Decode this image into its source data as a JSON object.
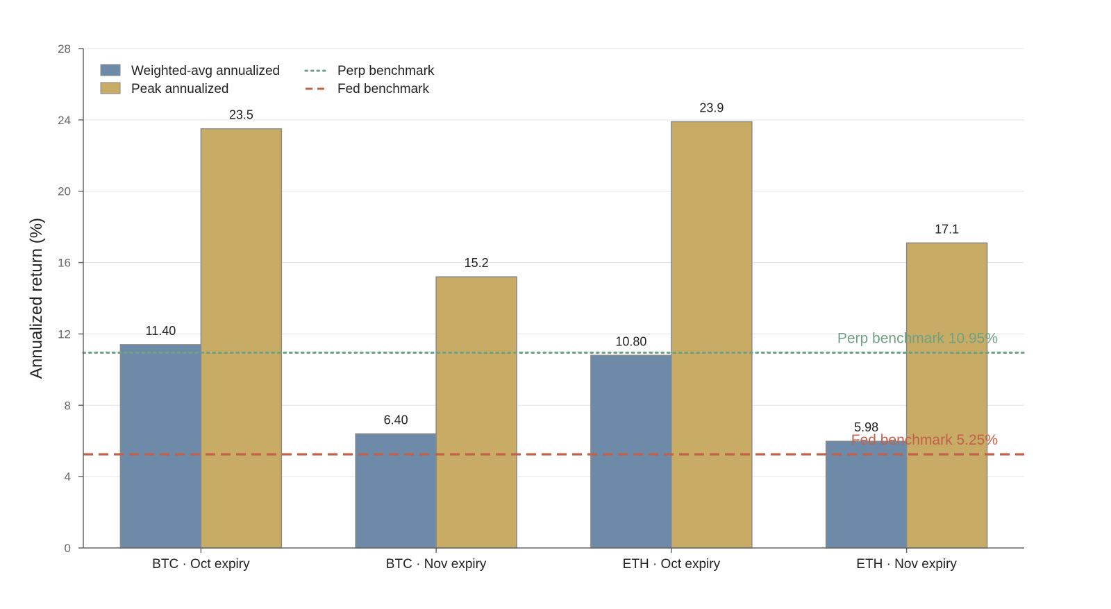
{
  "chart_data": {
    "type": "bar",
    "title": "",
    "xlabel": "",
    "ylabel": "Annualized return (%)",
    "ylim": [
      0,
      28
    ],
    "yticks": [
      0,
      4,
      8,
      12,
      16,
      20,
      24,
      28
    ],
    "grid": "horizontal",
    "legend_position": "top-left",
    "categories": [
      "BTC · Oct expiry",
      "BTC · Nov expiry",
      "ETH · Oct expiry",
      "ETH · Nov expiry"
    ],
    "series": [
      {
        "name": "Weighted-avg annualized",
        "color": "#6d8ba8",
        "values": [
          11.4,
          6.4,
          10.8,
          5.98
        ],
        "labels": [
          "11.40",
          "6.40",
          "10.80",
          "5.98"
        ]
      },
      {
        "name": "Peak annualized",
        "color": "#c8ab64",
        "values": [
          23.5,
          15.2,
          23.9,
          17.1
        ],
        "labels": [
          "23.5",
          "15.2",
          "23.9",
          "17.1"
        ]
      }
    ],
    "reference_lines": [
      {
        "name": "Perp benchmark",
        "value": 10.95,
        "style": "dotted",
        "color": "#6fa285",
        "label": "Perp benchmark 10.95%"
      },
      {
        "name": "Fed benchmark",
        "value": 5.25,
        "style": "dashed",
        "color": "#c4604a",
        "label": "Fed benchmark 5.25%"
      }
    ]
  }
}
